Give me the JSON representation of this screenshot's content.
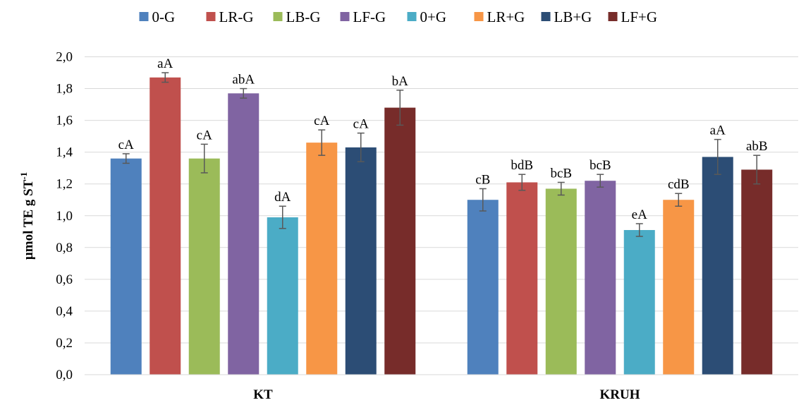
{
  "chart_data": {
    "type": "bar",
    "categories": [
      "KT",
      "KRUH"
    ],
    "ylabel": "µmol TE g ST",
    "ylabel_superscript": "-1",
    "ylim": [
      0,
      2.0
    ],
    "y_ticks": [
      "0,0",
      "0,2",
      "0,4",
      "0,6",
      "0,8",
      "1,0",
      "1,2",
      "1,4",
      "1,6",
      "1,8",
      "2,0"
    ],
    "grid": true,
    "legend_position": "top",
    "series": [
      {
        "name": "0-G",
        "color": "#4F81BD",
        "values": [
          1.36,
          1.1
        ],
        "errors": [
          0.03,
          0.07
        ],
        "labels": [
          "cA",
          "cB"
        ]
      },
      {
        "name": "LR-G",
        "color": "#C0504D",
        "values": [
          1.87,
          1.21
        ],
        "errors": [
          0.03,
          0.05
        ],
        "labels": [
          "aA",
          "bdB"
        ]
      },
      {
        "name": "LB-G",
        "color": "#9BBB59",
        "values": [
          1.36,
          1.17
        ],
        "errors": [
          0.09,
          0.04
        ],
        "labels": [
          "cA",
          "bcB"
        ]
      },
      {
        "name": "LF-G",
        "color": "#8064A2",
        "values": [
          1.77,
          1.22
        ],
        "errors": [
          0.03,
          0.04
        ],
        "labels": [
          "abA",
          "bcB"
        ]
      },
      {
        "name": "0+G",
        "color": "#4BACC6",
        "values": [
          0.99,
          0.91
        ],
        "errors": [
          0.07,
          0.04
        ],
        "labels": [
          "dA",
          "eA"
        ]
      },
      {
        "name": "LR+G",
        "color": "#F79646",
        "values": [
          1.46,
          1.1
        ],
        "errors": [
          0.08,
          0.04
        ],
        "labels": [
          "cA",
          "cdB"
        ]
      },
      {
        "name": "LB+G",
        "color": "#2C4D75",
        "values": [
          1.43,
          1.37
        ],
        "errors": [
          0.09,
          0.11
        ],
        "labels": [
          "cA",
          "aA"
        ]
      },
      {
        "name": "LF+G",
        "color": "#772C2A",
        "values": [
          1.68,
          1.29
        ],
        "errors": [
          0.11,
          0.09
        ],
        "labels": [
          "bA",
          "abB"
        ]
      }
    ]
  }
}
